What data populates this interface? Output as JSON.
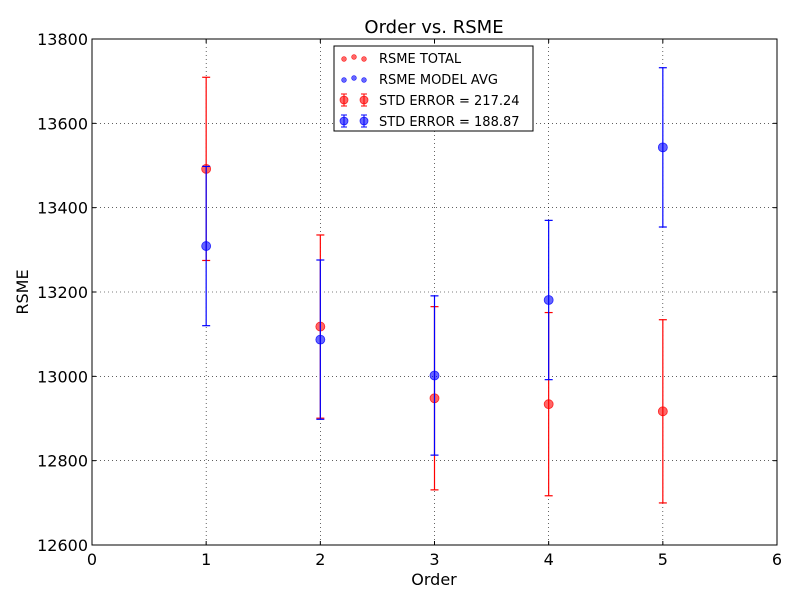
{
  "chart_data": {
    "type": "scatter",
    "title": "Order vs. RSME",
    "xlabel": "Order",
    "ylabel": "RSME",
    "xlim": [
      0,
      6
    ],
    "ylim": [
      12600,
      13800
    ],
    "xticks": [
      0,
      1,
      2,
      3,
      4,
      5,
      6
    ],
    "yticks": [
      12600,
      12800,
      13000,
      13200,
      13400,
      13600,
      13800
    ],
    "grid": true,
    "legend_position": "top-center",
    "series": [
      {
        "name": "RSME TOTAL",
        "color": "#ff0000",
        "x": [
          1,
          2,
          3,
          4,
          5
        ],
        "y": [
          13492,
          13118,
          12948,
          12934,
          12917
        ],
        "error": 217.24
      },
      {
        "name": "RSME MODEL AVG",
        "color": "#0000ff",
        "x": [
          1,
          2,
          3,
          4,
          5
        ],
        "y": [
          13309,
          13087,
          13002,
          13181,
          13543
        ],
        "error": 188.87
      }
    ],
    "legend": [
      {
        "label": "RSME TOTAL",
        "color": "#ff0000",
        "kind": "scatter"
      },
      {
        "label": "RSME MODEL AVG",
        "color": "#0000ff",
        "kind": "scatter"
      },
      {
        "label": "STD ERROR = 217.24",
        "color": "#ff0000",
        "kind": "errorbar"
      },
      {
        "label": "STD ERROR = 188.87",
        "color": "#0000ff",
        "kind": "errorbar"
      }
    ]
  }
}
